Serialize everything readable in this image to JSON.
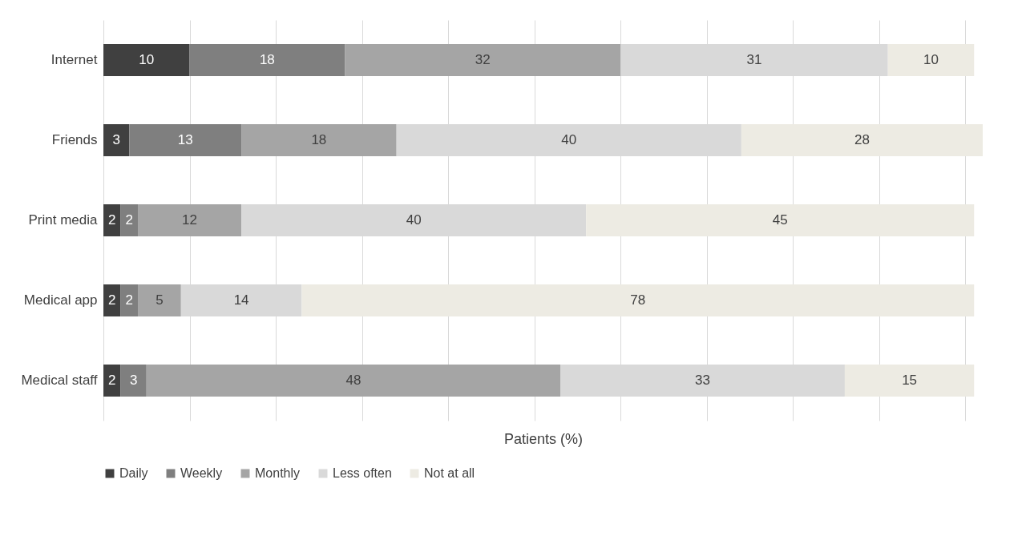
{
  "chart_data": {
    "type": "bar",
    "orientation": "horizontal",
    "stacked": true,
    "xlabel": "Patients (%)",
    "categories": [
      "Internet",
      "Friends",
      "Print media",
      "Medical app",
      "Medical staff"
    ],
    "series": [
      {
        "name": "Daily",
        "color": "#404040",
        "values": [
          10,
          3,
          2,
          2,
          2
        ]
      },
      {
        "name": "Weekly",
        "color": "#7f7f7f",
        "values": [
          18,
          13,
          2,
          2,
          3
        ]
      },
      {
        "name": "Monthly",
        "color": "#a5a5a5",
        "values": [
          32,
          18,
          12,
          5,
          48
        ]
      },
      {
        "name": "Less often",
        "color": "#d9d9d9",
        "values": [
          31,
          40,
          40,
          14,
          33
        ]
      },
      {
        "name": "Not at all",
        "color": "#edebe3",
        "values": [
          10,
          28,
          45,
          78,
          15
        ]
      }
    ],
    "xlim": [
      0,
      102
    ],
    "xticks": [
      {
        "value": 0,
        "label": null
      },
      {
        "value": 10,
        "label": null
      },
      {
        "value": 20,
        "label": null
      },
      {
        "value": 30,
        "label": null
      },
      {
        "value": 40,
        "label": null
      },
      {
        "value": 50,
        "label": null
      },
      {
        "value": 60,
        "label": null
      },
      {
        "value": 70,
        "label": null
      },
      {
        "value": 80,
        "label": null
      },
      {
        "value": 90,
        "label": null
      },
      {
        "value": 100,
        "label": null
      }
    ],
    "tick_labels": "y",
    "grid": "x",
    "legend": "bottom",
    "data_labels": true
  }
}
